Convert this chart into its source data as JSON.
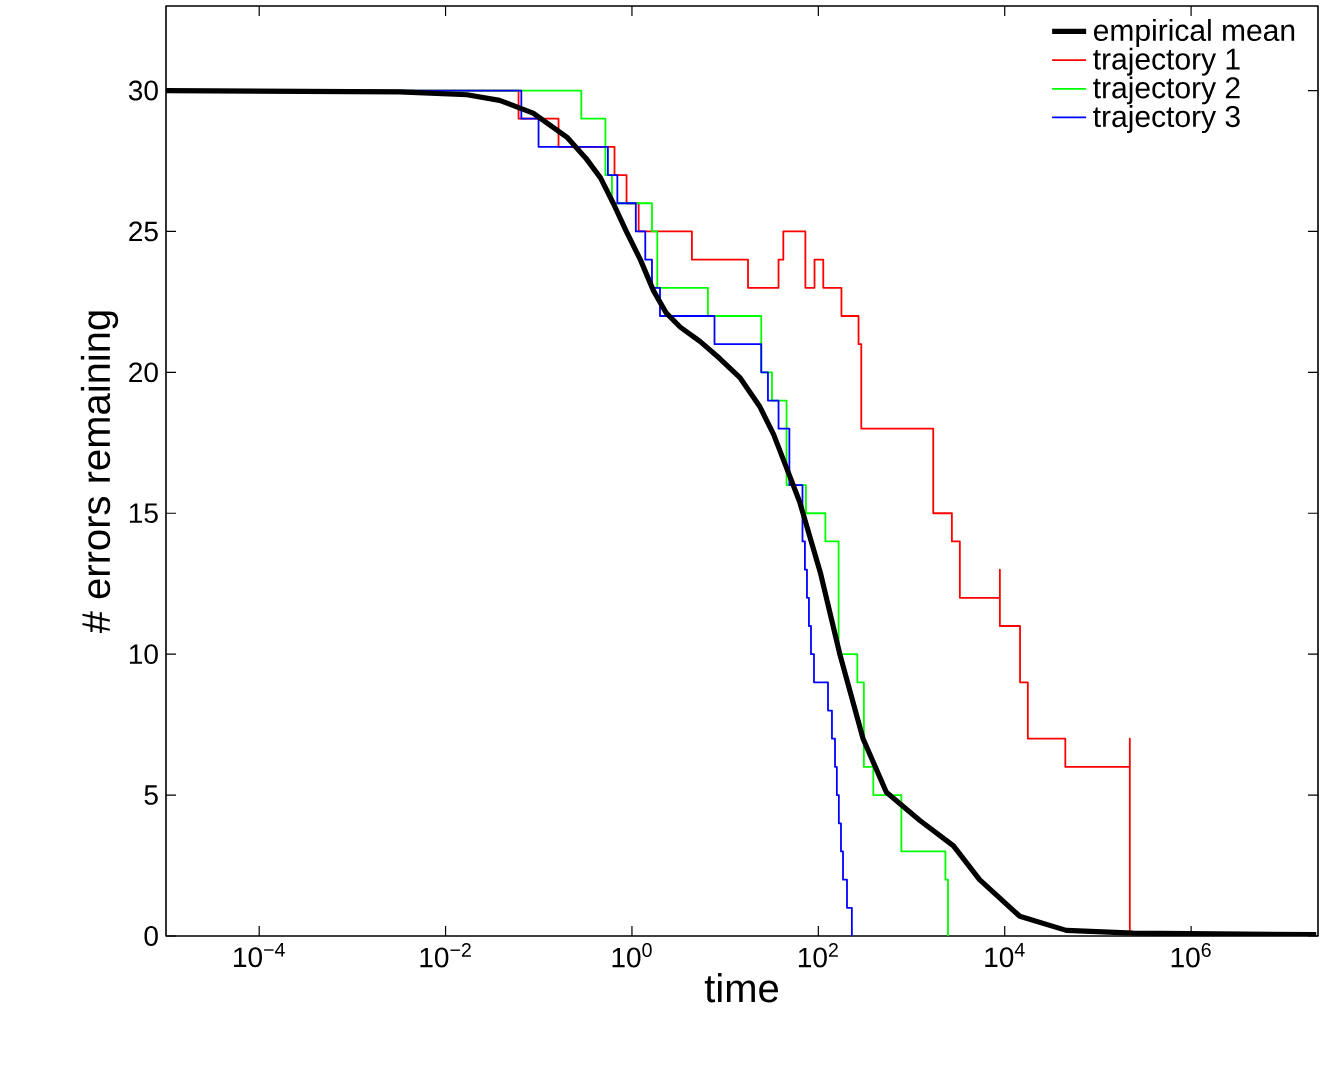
{
  "chart_data": {
    "type": "step",
    "xlabel": "time",
    "ylabel": "# errors remaining",
    "log": "x",
    "legend": "top right",
    "xlim": [
      1e-05,
      23000000.0
    ],
    "ylim": [
      0,
      33
    ],
    "xticks": [
      {
        "value": 0.0001,
        "label": "10$^{−4}$"
      },
      {
        "value": 0.01,
        "label": "10$^{−2}$"
      },
      {
        "value": 1,
        "label": "10$^{0}$"
      },
      {
        "value": 100,
        "label": "10$^{2}$"
      },
      {
        "value": 10000,
        "label": "10$^{4}$"
      },
      {
        "value": 1000000,
        "label": "10$^{6}$"
      }
    ],
    "yticks": [
      0,
      5,
      10,
      15,
      20,
      25,
      30
    ],
    "series": [
      {
        "name": "empirical mean",
        "type": "line",
        "color": "#000000",
        "x": [
          1e-05,
          0.0032,
          0.017,
          0.038,
          0.087,
          0.2,
          0.32,
          0.46,
          0.63,
          0.87,
          1.23,
          1.7,
          2.34,
          3.31,
          5.37,
          8.7,
          14.5,
          23.4,
          33.1,
          45.7,
          63.1,
          105,
          170,
          302,
          537,
          1230,
          2820,
          5370,
          14500,
          45700,
          240000,
          22000000
        ],
        "values": [
          30,
          29.95,
          29.85,
          29.65,
          29.2,
          28.35,
          27.6,
          26.9,
          26,
          25,
          24,
          22.9,
          22.1,
          21.6,
          21.1,
          20.5,
          19.8,
          18.8,
          17.8,
          16.6,
          15.4,
          12.9,
          10,
          7,
          5.1,
          4.1,
          3.2,
          2,
          0.7,
          0.2,
          0.1,
          0.05
        ]
      },
      {
        "name": "trajectory 1",
        "color": "#ff0000",
        "x": [
          1e-05,
          0.0607,
          0.163,
          0.65,
          0.875,
          1.18,
          4.4,
          17.6,
          37.4,
          42.1,
          72.6,
          91,
          113,
          177,
          270,
          289,
          1710,
          2710,
          3300,
          8870,
          8870,
          14600,
          17700,
          44700,
          220000,
          220000
        ],
        "values": [
          30,
          29,
          28,
          27,
          26,
          25,
          24,
          23,
          24,
          25,
          23,
          24,
          23,
          22,
          21,
          18,
          15,
          14,
          12,
          13,
          11,
          9,
          7,
          6,
          7,
          0
        ]
      },
      {
        "name": "trajectory 2",
        "color": "#00ff00",
        "x": [
          1e-05,
          0.286,
          0.519,
          0.61,
          1.64,
          1.87,
          6.53,
          24.4,
          31.8,
          45.6,
          73.6,
          119,
          165,
          262,
          308,
          389,
          778,
          2310,
          2460
        ],
        "values": [
          30,
          29,
          27,
          26,
          25,
          23,
          22,
          20,
          19,
          16,
          15,
          14,
          10,
          9,
          6,
          5,
          3,
          2,
          0
        ]
      },
      {
        "name": "trajectory 3",
        "color": "#0000ff",
        "x": [
          1e-05,
          0.065,
          0.0995,
          0.552,
          0.697,
          1.1,
          1.39,
          1.64,
          2.0,
          7.69,
          24.4,
          28.8,
          37.4,
          48.9,
          67.6,
          71.8,
          75.5,
          79.3,
          83.4,
          89.8,
          127,
          140,
          151,
          158,
          166,
          175,
          184,
          203,
          229
        ],
        "values": [
          30,
          29,
          28,
          27,
          26,
          25,
          24,
          23,
          22,
          21,
          20,
          19,
          18,
          16,
          14,
          13,
          12,
          11,
          10,
          9,
          8,
          7,
          6,
          5,
          4,
          3,
          2,
          1,
          0
        ]
      }
    ]
  }
}
